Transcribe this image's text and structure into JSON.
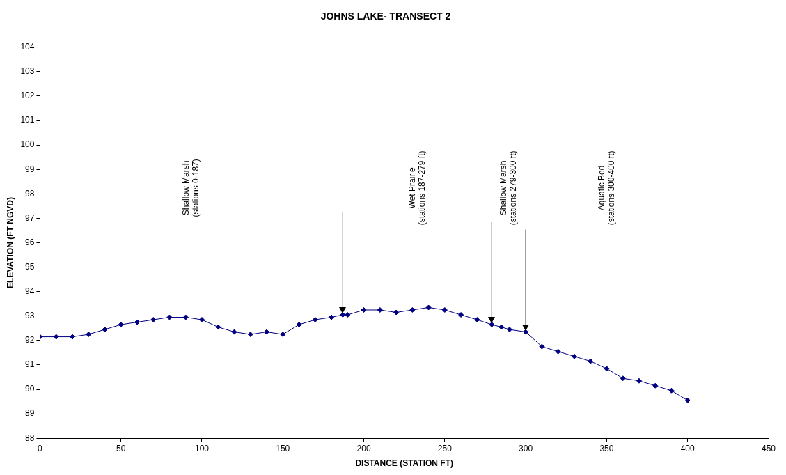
{
  "chart_data": {
    "type": "line",
    "title": "JOHNS LAKE- TRANSECT 2",
    "xlabel": "DISTANCE (STATION FT)",
    "ylabel": "ELEVATION (FT NGVD)",
    "x": [
      0,
      10,
      20,
      30,
      40,
      50,
      60,
      70,
      80,
      90,
      100,
      110,
      120,
      130,
      140,
      150,
      160,
      170,
      180,
      187,
      190,
      200,
      210,
      220,
      230,
      240,
      250,
      260,
      270,
      279,
      285,
      290,
      300,
      310,
      320,
      330,
      340,
      350,
      360,
      370,
      380,
      390,
      400
    ],
    "series": [
      {
        "color": "#000080",
        "values": [
          92.15,
          92.15,
          92.15,
          92.25,
          92.45,
          92.65,
          92.75,
          92.85,
          92.95,
          92.95,
          92.85,
          92.55,
          92.35,
          92.25,
          92.35,
          92.25,
          92.65,
          92.85,
          92.95,
          93.05,
          93.05,
          93.25,
          93.25,
          93.15,
          93.25,
          93.35,
          93.25,
          93.05,
          92.85,
          92.65,
          92.55,
          92.45,
          92.35,
          91.75,
          91.55,
          91.35,
          91.15,
          90.85,
          90.45,
          90.35,
          90.15,
          89.95,
          89.55
        ]
      }
    ],
    "xlim": [
      0,
      450
    ],
    "xticks": [
      0,
      50,
      100,
      150,
      200,
      250,
      300,
      350,
      400,
      450
    ],
    "ylim": [
      88,
      104
    ],
    "yticks": [
      88,
      89,
      90,
      91,
      92,
      93,
      94,
      95,
      96,
      97,
      98,
      99,
      100,
      101,
      102,
      103,
      104
    ],
    "grid": false,
    "legend": false,
    "marker": "diamond",
    "line_style": "solid",
    "ref_lines": [
      {
        "axis": "x",
        "value": 187,
        "color": "#000000"
      },
      {
        "axis": "x",
        "value": 279,
        "color": "#000000"
      },
      {
        "axis": "x",
        "value": 300,
        "color": "#000000"
      }
    ],
    "annotations": [
      "Shallow Marsh\n(stations 0-187)",
      "Wet Prairie\n(stations 187-279 ft)",
      "Shallow Marsh\n(stations 279-300 ft)",
      "Aquatic Bed\n(stations 300-400 ft)"
    ]
  }
}
